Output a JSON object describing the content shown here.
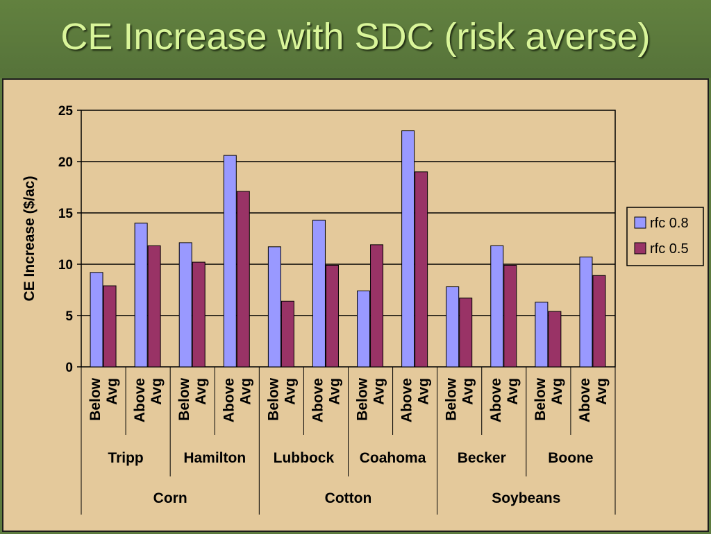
{
  "slide": {
    "title": "CE Increase with SDC (risk averse)"
  },
  "chart_data": {
    "type": "bar",
    "title": "CE Increase with SDC (risk averse)",
    "xlabel": "",
    "ylabel": "CE Increase ($/ac)",
    "ylim": [
      0,
      25
    ],
    "yticks": [
      0,
      5,
      10,
      15,
      20,
      25
    ],
    "grid": true,
    "legend_position": "right",
    "category_levels": [
      {
        "name": "condition",
        "labels": [
          [
            "Below",
            "Avg"
          ],
          [
            "Above",
            "Avg"
          ],
          [
            "Below",
            "Avg"
          ],
          [
            "Above",
            "Avg"
          ],
          [
            "Below",
            "Avg"
          ],
          [
            "Above",
            "Avg"
          ],
          [
            "Below",
            "Avg"
          ],
          [
            "Above",
            "Avg"
          ],
          [
            "Below",
            "Avg"
          ],
          [
            "Above",
            "Avg"
          ],
          [
            "Below",
            "Avg"
          ],
          [
            "Above",
            "Avg"
          ]
        ]
      },
      {
        "name": "location",
        "labels": [
          "Tripp",
          "Hamilton",
          "Lubbock",
          "Coahoma",
          "Becker",
          "Boone"
        ],
        "span": 2
      },
      {
        "name": "crop",
        "labels": [
          "Corn",
          "Cotton",
          "Soybeans"
        ],
        "span": 4
      }
    ],
    "series": [
      {
        "name": "rfc 0.8",
        "color": "#9999ff",
        "values": [
          9.2,
          14.0,
          12.1,
          20.6,
          11.7,
          14.3,
          7.4,
          23.0,
          7.8,
          11.8,
          6.3,
          10.7
        ]
      },
      {
        "name": "rfc 0.5",
        "color": "#993366",
        "values": [
          7.9,
          11.8,
          10.2,
          17.1,
          6.4,
          9.9,
          11.9,
          19.0,
          6.7,
          9.9,
          5.4,
          8.9
        ]
      }
    ]
  }
}
